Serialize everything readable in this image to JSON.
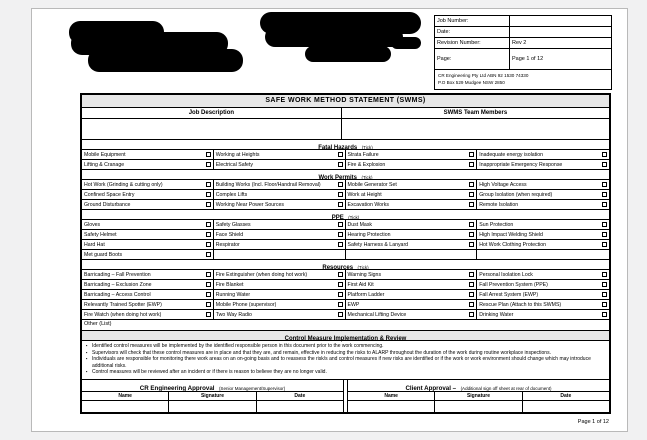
{
  "doc": {
    "title": "SAFE WORK METHOD STATEMENT (SWMS)",
    "footer_page": "Page 1 of 12"
  },
  "info_box": {
    "rows": [
      {
        "label": "Job Number:",
        "value": ""
      },
      {
        "label": "Date:",
        "value": ""
      },
      {
        "label": "Revision Number:",
        "value": "Rev 2"
      },
      {
        "label": "Page:",
        "value": "Page 1 of 12"
      }
    ],
    "company_line1": "CR Engineering Pty Ltd   ABN 92 1530 74330",
    "company_line2": "P.O Box 529 Mudgee NSW 2850"
  },
  "job_table": {
    "left_header": "Job Description",
    "right_header": "SWMS Team Members"
  },
  "grids": {
    "fatal": {
      "title": "Fatal Hazards",
      "tick": "(Tick)",
      "rows": [
        [
          "Mobile Equipment",
          "Working at Heights",
          "Strata Failure",
          "Inadequate energy isolation"
        ],
        [
          "Lifting & Cranage",
          "Electrical Safety",
          "Fire & Explosion",
          "Inappropriate Emergency Response"
        ]
      ]
    },
    "permits": {
      "title": "Work Permits",
      "tick": "(Tick)",
      "rows": [
        [
          "Hot Work (Grinding & cutting only)",
          "Building Works (Incl. Floor/Handrail Removal)",
          "Mobile Generator Set",
          "High Voltage Access"
        ],
        [
          "Confined Space Entry",
          "Complex Lifts",
          "Work at Height",
          "Group Isolation (when required)"
        ],
        [
          "Ground Disturbance",
          "Working Near Power Sources",
          "Excavation Works",
          "Remote Isolation"
        ]
      ]
    },
    "ppe": {
      "title": "PPE",
      "tick": "(Tick)",
      "rows": [
        [
          "Gloves",
          "Safety Glasses",
          "Dust Mask",
          "Sun Protection"
        ],
        [
          "Safety Helmet",
          "Face Shield",
          "Hearing Protection",
          "High Impact Welding Shield"
        ],
        [
          "Hard Hat",
          "Respirator",
          "Safety Harness & Lanyard",
          "Hot Work Clothing Protection"
        ],
        [
          "Met guard Boots",
          null,
          null,
          null
        ]
      ]
    },
    "resources": {
      "title": "Resources",
      "tick": "(Tick)",
      "rows": [
        [
          "Barricading – Fall Prevention",
          "Fire Extinguisher (when doing hot work)",
          "Warning Signs",
          "Personal Isolation Lock"
        ],
        [
          "Barricading – Exclusion Zone",
          "Fire Blanket",
          "First Aid Kit",
          "Fall Prevention System (PPE)"
        ],
        [
          "Barricading – Access Control",
          "Running Water",
          "Platform Ladder",
          "Fall Arrest System (EWP)"
        ],
        [
          "Relevantly Trained Spotter (EWP)",
          "Mobile Phone (supervisor)",
          "EWP",
          "Rescue Plan (Attach to this SWMS)"
        ],
        [
          "Fire Watch (when doing hot work)",
          "Two Way Radio",
          "Mechanical Lifting Device",
          "Drinking Water"
        ]
      ]
    }
  },
  "other_row": {
    "label": "Other (List)"
  },
  "control_section": {
    "title": "Control Measure Implementation & Review",
    "bullets": [
      "Identified control measures will be implemented by the identified responsible person in this document prior to the work commencing.",
      "Supervisors will check that these control measures are in place and that they are, and remain, effective in reducing the risks to ALARP throughout the duration of the work during routine workplace inspections.",
      "Individuals are responsible for monitoring there work areas on an on-going basis and to reassess the risk/s and control measures if new risks are identified or if the work or work environment should change which may introduce additional risks.",
      "Control measures will be reviewed after an incident or if there is reason to believe they are no longer valid."
    ]
  },
  "approvals": {
    "left": {
      "title": "CR Engineering Approval",
      "note": "(Senior Management/Supervisor)",
      "columns": [
        "Name",
        "Signature",
        "Date"
      ]
    },
    "right": {
      "title": "Client Approval –",
      "note": "(Additional sign off sheet at rear of document)",
      "columns": [
        "Name",
        "Signature",
        "Date"
      ]
    }
  },
  "colors": {
    "section_header_bg": "#e7e7e7",
    "border": "#000000",
    "canvas": "#f1f1f2",
    "redaction": "#000000"
  }
}
